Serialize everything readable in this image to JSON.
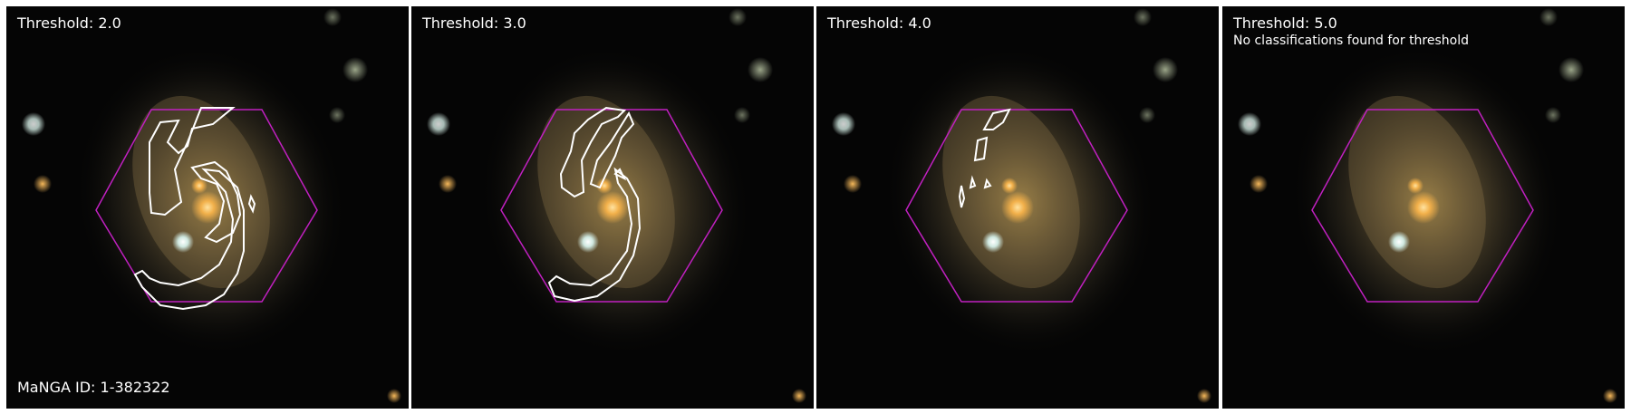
{
  "panels": [
    {
      "threshold_label": "Threshold: 2.0",
      "note": "",
      "footer": "MaNGA ID: 1-382322"
    },
    {
      "threshold_label": "Threshold: 3.0",
      "note": "",
      "footer": ""
    },
    {
      "threshold_label": "Threshold: 4.0",
      "note": "",
      "footer": ""
    },
    {
      "threshold_label": "Threshold: 5.0",
      "note": "No classifications found for threshold",
      "footer": ""
    }
  ],
  "colors": {
    "hexagon": "#c020c0",
    "contour": "#ffffff",
    "background": "#000000",
    "galaxy_core": "#f2b04a"
  }
}
